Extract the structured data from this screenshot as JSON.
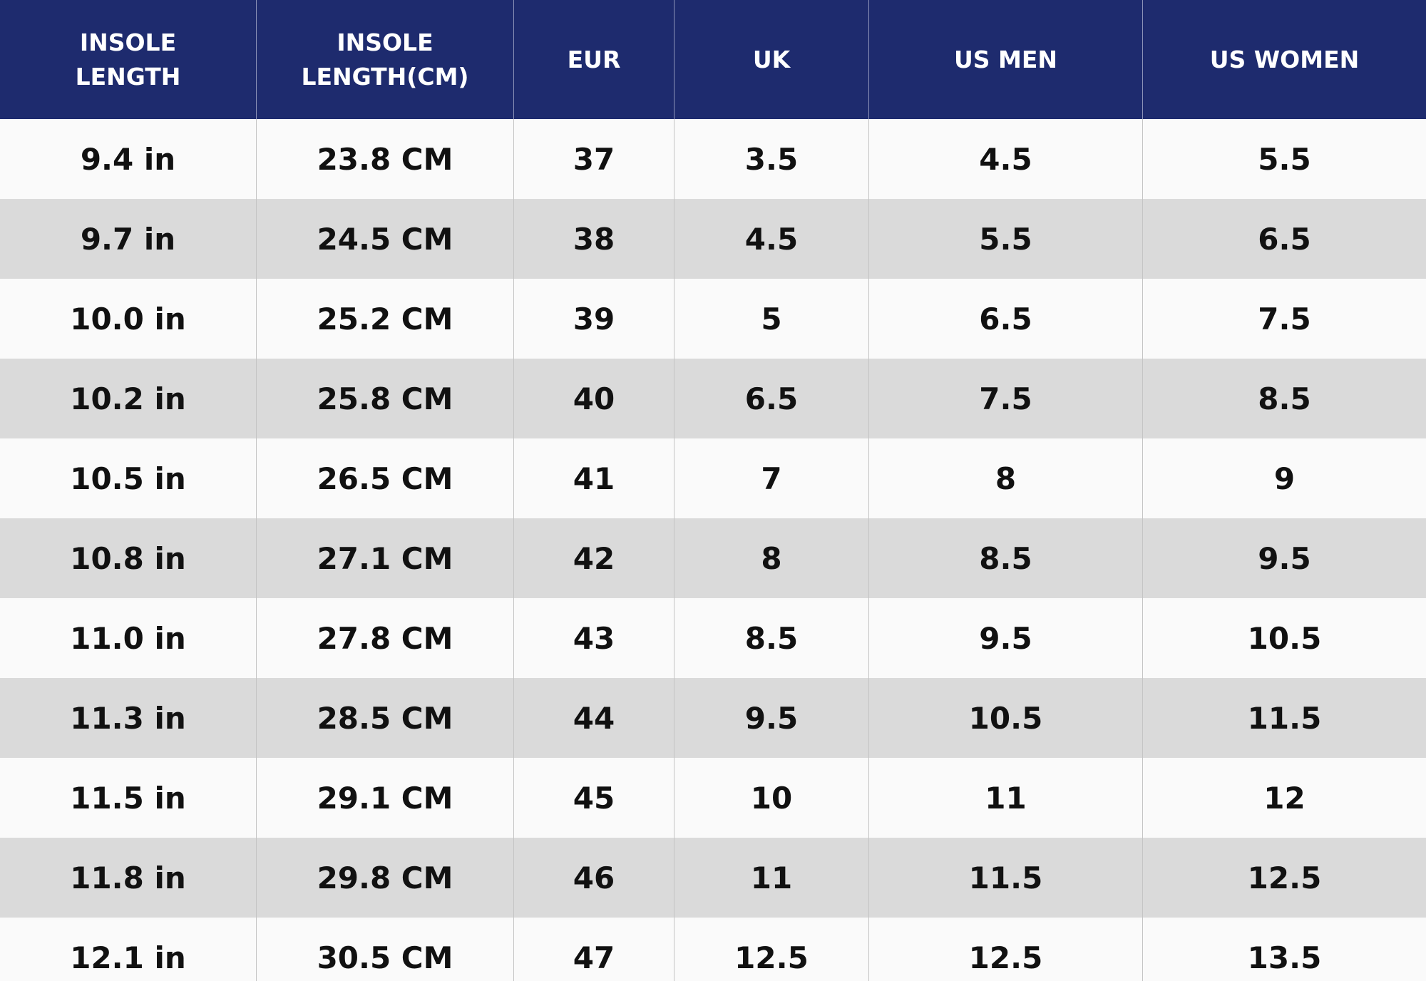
{
  "table": {
    "header": [
      "INSOLE LENGTH",
      "INSOLE LENGTH(CM)",
      "EUR",
      "UK",
      "US MEN",
      "US WOMEN"
    ],
    "rows": [
      [
        "9.4 in",
        "23.8 CM",
        "37",
        "3.5",
        "4.5",
        "5.5"
      ],
      [
        "9.7 in",
        "24.5 CM",
        "38",
        "4.5",
        "5.5",
        "6.5"
      ],
      [
        "10.0 in",
        "25.2 CM",
        "39",
        "5",
        "6.5",
        "7.5"
      ],
      [
        "10.2 in",
        "25.8 CM",
        "40",
        "6.5",
        "7.5",
        "8.5"
      ],
      [
        "10.5 in",
        "26.5 CM",
        "41",
        "7",
        "8",
        "9"
      ],
      [
        "10.8 in",
        "27.1 CM",
        "42",
        "8",
        "8.5",
        "9.5"
      ],
      [
        "11.0 in",
        "27.8 CM",
        "43",
        "8.5",
        "9.5",
        "10.5"
      ],
      [
        "11.3 in",
        "28.5 CM",
        "44",
        "9.5",
        "10.5",
        "11.5"
      ],
      [
        "11.5 in",
        "29.1 CM",
        "45",
        "10",
        "11",
        "12"
      ],
      [
        "11.8 in",
        "29.8 CM",
        "46",
        "11",
        "11.5",
        "12.5"
      ],
      [
        "12.1 in",
        "30.5 CM",
        "47",
        "12.5",
        "12.5",
        "13.5"
      ]
    ]
  }
}
